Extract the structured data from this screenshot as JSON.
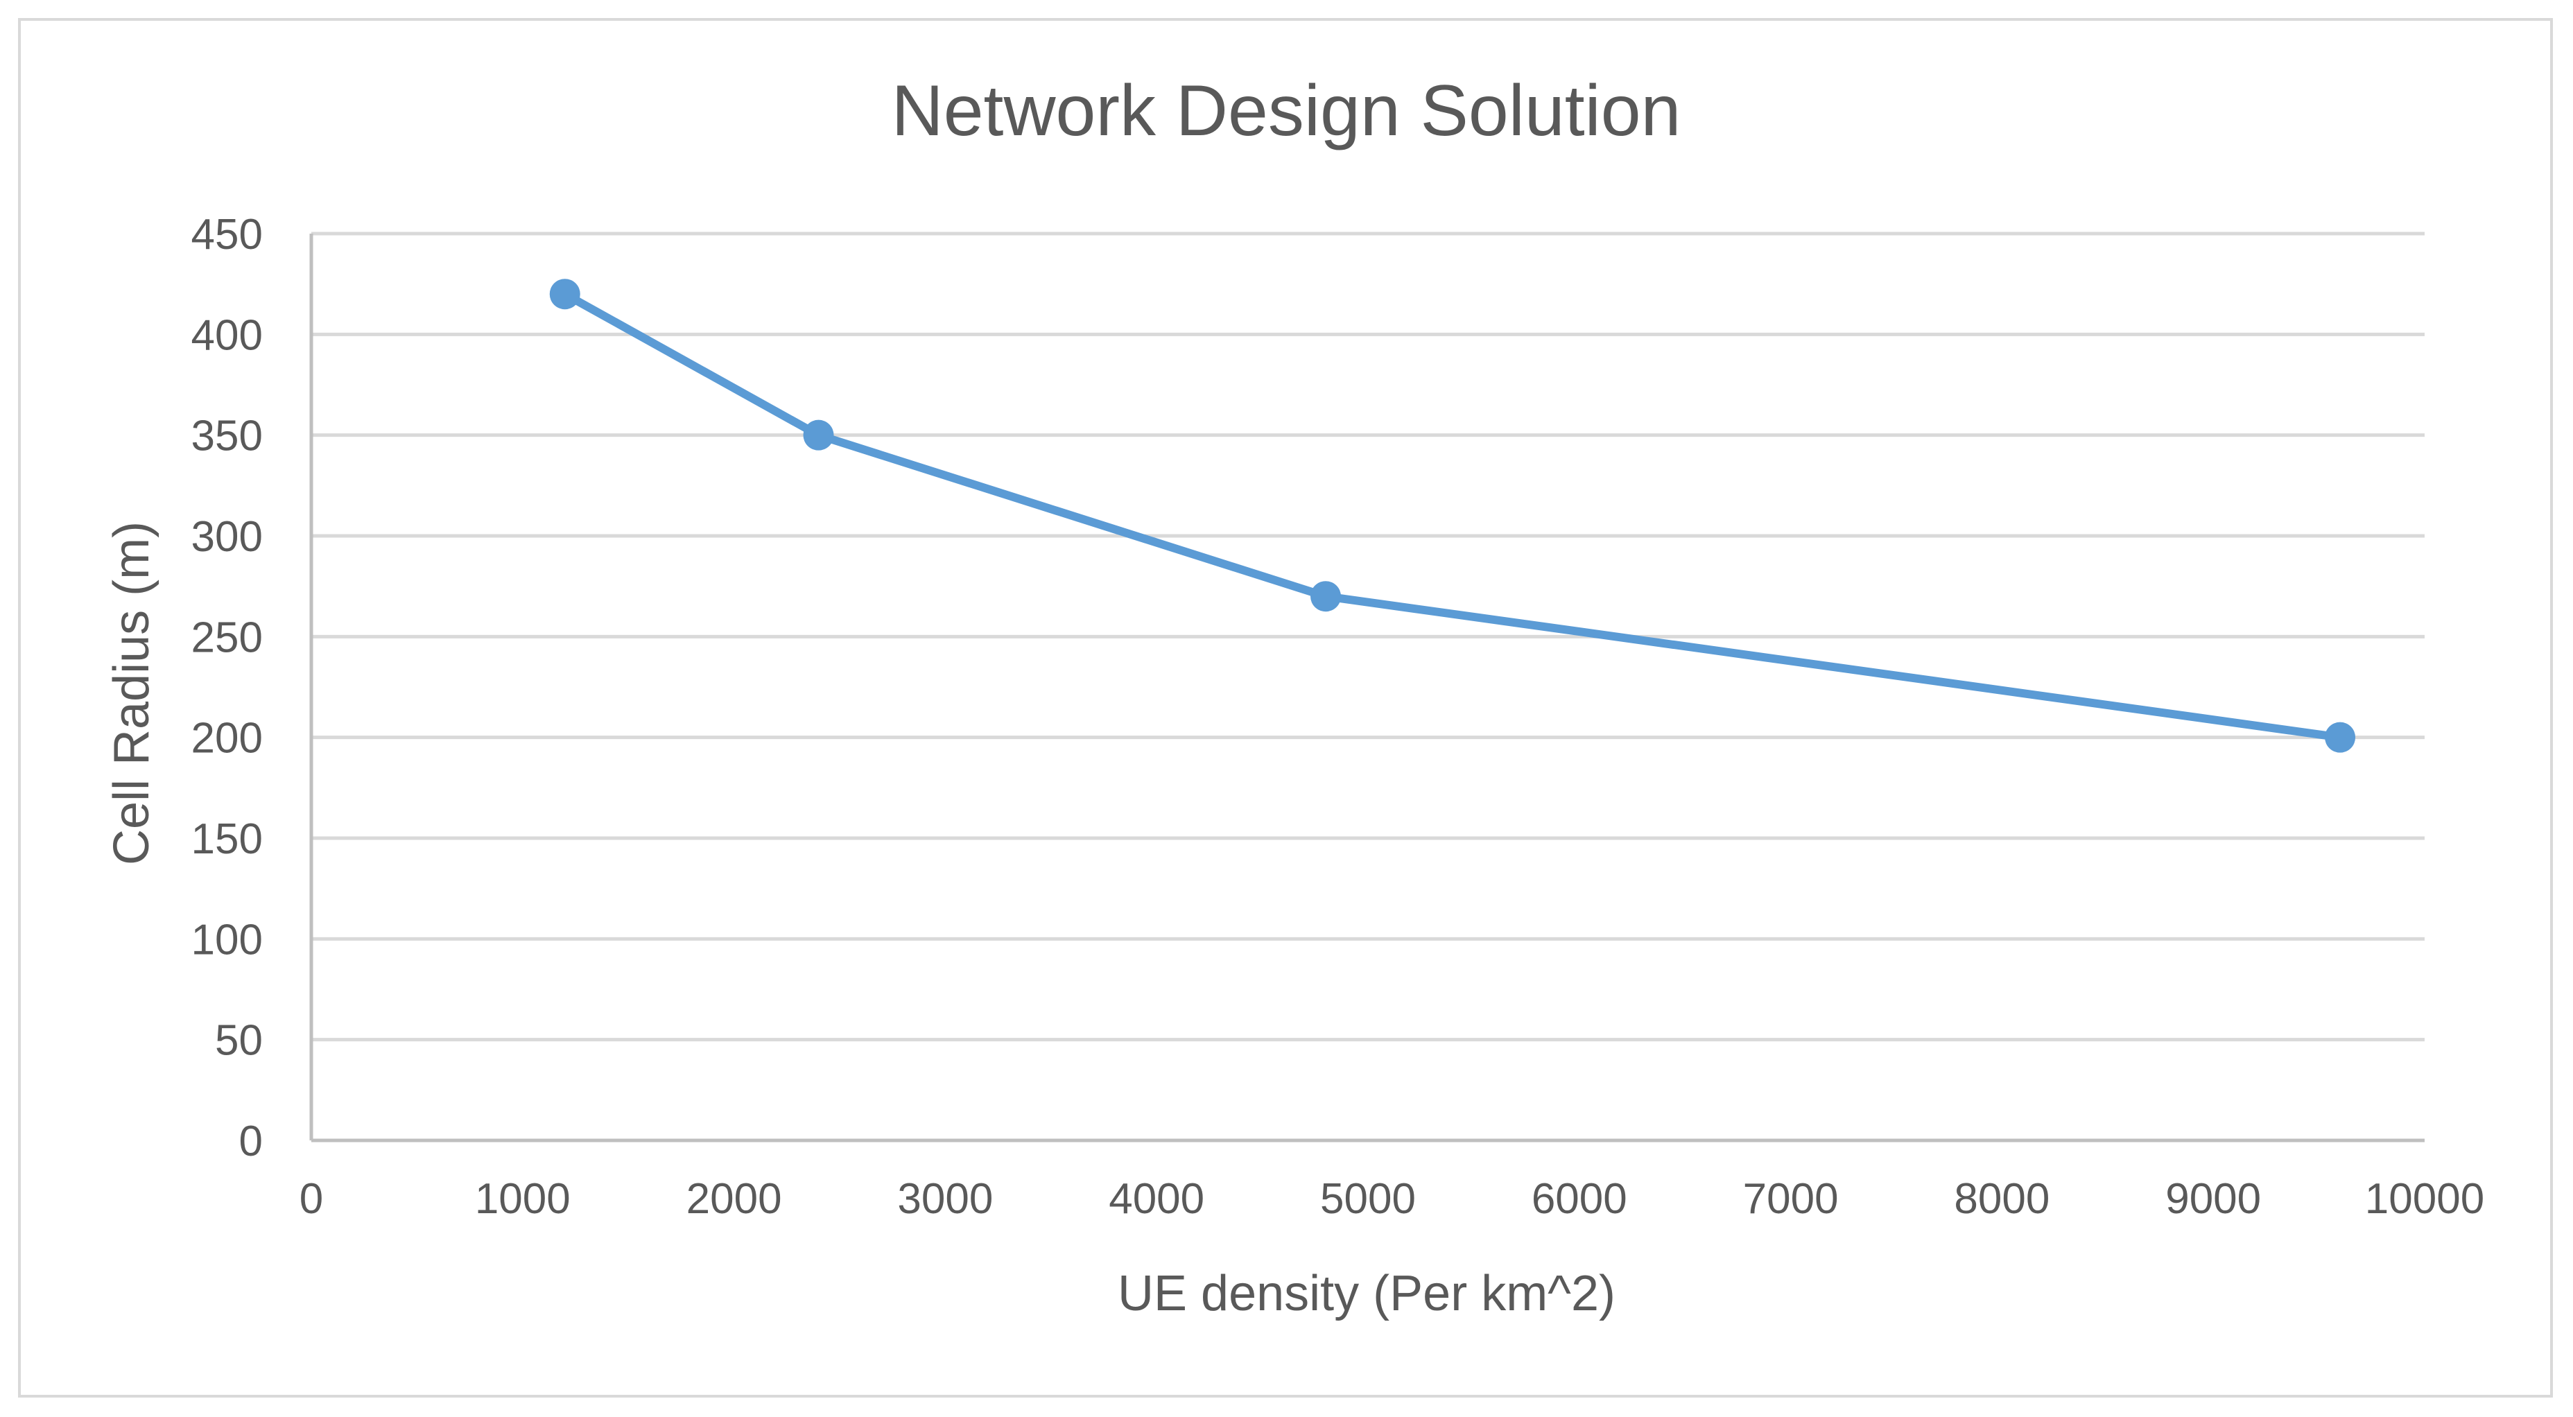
{
  "chart_data": {
    "type": "line",
    "title": "Network Design Solution",
    "xlabel": "UE density (Per km^2)",
    "ylabel": "Cell Radius (m)",
    "xlim": [
      0,
      10000
    ],
    "ylim": [
      0,
      450
    ],
    "x_ticks": [
      0,
      1000,
      2000,
      3000,
      4000,
      5000,
      6000,
      7000,
      8000,
      9000,
      10000
    ],
    "y_ticks": [
      0,
      50,
      100,
      150,
      200,
      250,
      300,
      350,
      400,
      450
    ],
    "x_tick_labels": [
      "0",
      "1000",
      "2000",
      "3000",
      "4000",
      "5000",
      "6000",
      "7000",
      "8000",
      "9000",
      "10000"
    ],
    "y_tick_labels": [
      "0",
      "50",
      "100",
      "150",
      "200",
      "250",
      "300",
      "350",
      "400",
      "450"
    ],
    "grid": "horizontal",
    "legend": "none",
    "series": [
      {
        "x": [
          1200,
          2400,
          4800,
          9600
        ],
        "y": [
          420,
          350,
          270,
          200
        ],
        "color": "#5b9bd5",
        "marker": "circle"
      }
    ]
  }
}
